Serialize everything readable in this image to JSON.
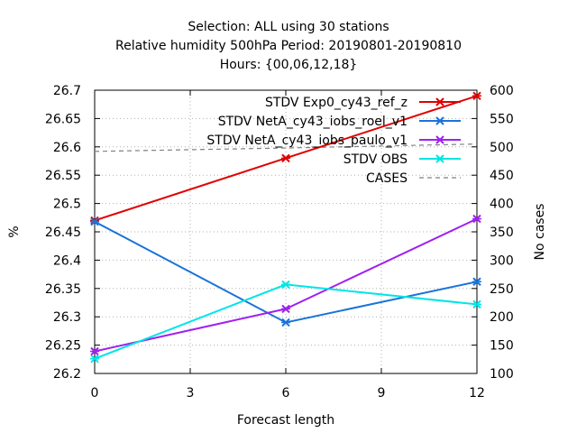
{
  "chart_data": {
    "type": "line",
    "title_lines": [
      "Selection: ALL using    30 stations",
      "Relative humidity 500hPa   Period: 20190801-20190810",
      "Hours: {00,06,12,18}"
    ],
    "xlabel": "Forecast length",
    "ylabel": "%",
    "y2label": "No cases",
    "xlim": [
      0,
      12
    ],
    "ylim": [
      26.2,
      26.7
    ],
    "y2lim": [
      100,
      600
    ],
    "x_ticks": [
      "0",
      "3",
      "6",
      "9",
      "12"
    ],
    "y_ticks": [
      "26.2",
      "26.25",
      "26.3",
      "26.35",
      "26.4",
      "26.45",
      "26.5",
      "26.55",
      "26.6",
      "26.65",
      "26.7"
    ],
    "y2_ticks": [
      "100",
      "150",
      "200",
      "250",
      "300",
      "350",
      "400",
      "450",
      "500",
      "550",
      "600"
    ],
    "grid": true,
    "legend_position": "top-right",
    "x": [
      0,
      6,
      12
    ],
    "series": [
      {
        "name": "STDV Exp0_cy43_ref_z",
        "color": "#e00000",
        "axis": "y",
        "marker": "x",
        "values": [
          26.47,
          26.58,
          26.69
        ]
      },
      {
        "name": "STDV NetA_cy43_iobs_roel_v1",
        "color": "#1a73d9",
        "axis": "y",
        "marker": "x",
        "values": [
          26.468,
          26.29,
          26.362
        ]
      },
      {
        "name": "STDV NetA_cy43_iobs_paulo_v1",
        "color": "#a020f0",
        "axis": "y",
        "marker": "x",
        "values": [
          26.239,
          26.314,
          26.473
        ]
      },
      {
        "name": "STDV OBS",
        "color": "#00e5e5",
        "axis": "y",
        "marker": "x",
        "values": [
          26.226,
          26.357,
          26.322
        ]
      },
      {
        "name": "CASES",
        "color": "#808080",
        "axis": "y2",
        "dashed": true,
        "values": [
          492,
          498,
          505
        ]
      }
    ]
  }
}
